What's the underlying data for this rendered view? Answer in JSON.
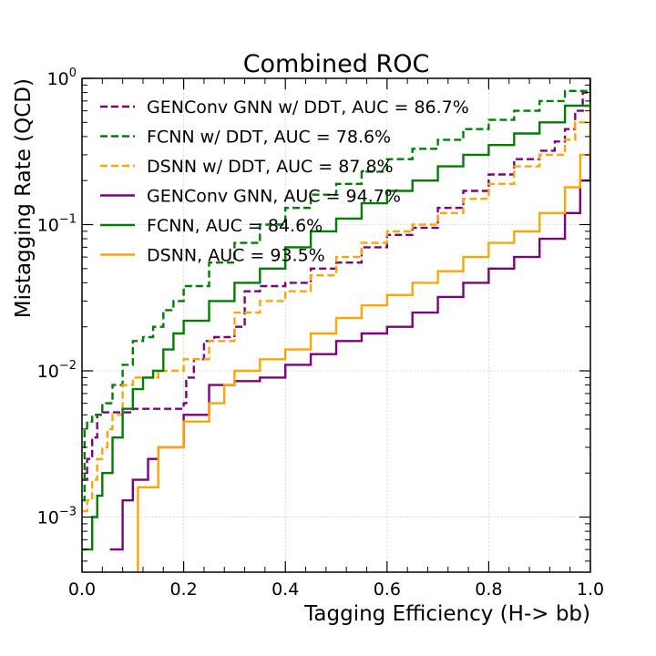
{
  "chart_data": {
    "type": "line",
    "title": "Combined ROC",
    "xlabel": "Tagging Efficiency (H-> bb)",
    "ylabel": "Mistagging Rate (QCD)",
    "xlim": [
      0.0,
      1.0
    ],
    "ylim": [
      0.00042,
      1.0
    ],
    "yscale": "log",
    "grid": true,
    "legend_position": "top-left",
    "x_ticks": [
      "0.0",
      "0.2",
      "0.4",
      "0.6",
      "0.8",
      "1.0"
    ],
    "y_ticks": [
      {
        "base": "10",
        "exp": "−3"
      },
      {
        "base": "10",
        "exp": "−2"
      },
      {
        "base": "10",
        "exp": "−1"
      },
      {
        "base": "10",
        "exp": "0"
      }
    ],
    "series": [
      {
        "name": "GENConv GNN w/ DDT, AUC = 86.7%",
        "color": "#800080",
        "dash": "dashed",
        "x": [
          0.0,
          0.01,
          0.02,
          0.03,
          0.04,
          0.1,
          0.2,
          0.205,
          0.22,
          0.24,
          0.26,
          0.3,
          0.32,
          0.35,
          0.4,
          0.45,
          0.5,
          0.55,
          0.6,
          0.65,
          0.7,
          0.75,
          0.8,
          0.85,
          0.9,
          0.93,
          0.95,
          0.97,
          0.985,
          1.0
        ],
        "y": [
          0.0018,
          0.0025,
          0.0035,
          0.005,
          0.0052,
          0.0055,
          0.006,
          0.009,
          0.012,
          0.016,
          0.017,
          0.02,
          0.035,
          0.038,
          0.04,
          0.05,
          0.055,
          0.07,
          0.085,
          0.095,
          0.13,
          0.17,
          0.22,
          0.28,
          0.32,
          0.37,
          0.45,
          0.6,
          0.8,
          1.0
        ]
      },
      {
        "name": "FCNN w/ DDT, AUC = 78.6%",
        "color": "#008000",
        "dash": "dashed",
        "x": [
          0.0,
          0.005,
          0.01,
          0.02,
          0.04,
          0.06,
          0.08,
          0.1,
          0.12,
          0.14,
          0.16,
          0.18,
          0.2,
          0.25,
          0.3,
          0.35,
          0.4,
          0.45,
          0.5,
          0.55,
          0.6,
          0.65,
          0.7,
          0.75,
          0.8,
          0.85,
          0.9,
          0.95,
          1.0
        ],
        "y": [
          0.0013,
          0.004,
          0.0045,
          0.005,
          0.006,
          0.008,
          0.011,
          0.016,
          0.017,
          0.02,
          0.026,
          0.03,
          0.038,
          0.055,
          0.075,
          0.1,
          0.13,
          0.16,
          0.19,
          0.23,
          0.28,
          0.33,
          0.38,
          0.45,
          0.52,
          0.6,
          0.7,
          0.82,
          1.0
        ]
      },
      {
        "name": "DSNN w/ DDT, AUC = 87.8%",
        "color": "#FFA500",
        "dash": "dashed",
        "x": [
          0.0,
          0.01,
          0.02,
          0.03,
          0.04,
          0.05,
          0.06,
          0.08,
          0.1,
          0.15,
          0.2,
          0.25,
          0.3,
          0.35,
          0.4,
          0.45,
          0.5,
          0.55,
          0.6,
          0.65,
          0.7,
          0.75,
          0.8,
          0.85,
          0.9,
          0.95,
          0.97,
          1.0
        ],
        "y": [
          0.0011,
          0.0013,
          0.0018,
          0.0025,
          0.003,
          0.004,
          0.005,
          0.008,
          0.009,
          0.01,
          0.012,
          0.016,
          0.025,
          0.03,
          0.035,
          0.045,
          0.06,
          0.075,
          0.09,
          0.1,
          0.12,
          0.15,
          0.19,
          0.25,
          0.3,
          0.38,
          0.5,
          0.8
        ]
      },
      {
        "name": "GENConv GNN, AUC = 94.7%",
        "color": "#800080",
        "dash": "solid",
        "x": [
          0.055,
          0.08,
          0.1,
          0.13,
          0.15,
          0.2,
          0.25,
          0.3,
          0.35,
          0.4,
          0.45,
          0.5,
          0.55,
          0.6,
          0.65,
          0.7,
          0.75,
          0.8,
          0.85,
          0.9,
          0.95,
          0.98,
          1.0
        ],
        "y": [
          0.0006,
          0.0013,
          0.0018,
          0.0025,
          0.003,
          0.005,
          0.008,
          0.0085,
          0.009,
          0.011,
          0.013,
          0.016,
          0.018,
          0.02,
          0.025,
          0.032,
          0.04,
          0.05,
          0.06,
          0.08,
          0.12,
          0.2,
          0.5
        ]
      },
      {
        "name": "FCNN, AUC = 84.6%",
        "color": "#008000",
        "dash": "solid",
        "x": [
          0.0,
          0.01,
          0.02,
          0.03,
          0.04,
          0.06,
          0.08,
          0.1,
          0.12,
          0.14,
          0.16,
          0.18,
          0.2,
          0.25,
          0.3,
          0.35,
          0.4,
          0.45,
          0.5,
          0.55,
          0.6,
          0.65,
          0.7,
          0.75,
          0.8,
          0.85,
          0.9,
          0.95,
          1.0
        ],
        "y": [
          0.0006,
          0.0006,
          0.001,
          0.0014,
          0.002,
          0.0035,
          0.0055,
          0.0075,
          0.009,
          0.01,
          0.014,
          0.018,
          0.022,
          0.03,
          0.04,
          0.05,
          0.07,
          0.09,
          0.11,
          0.14,
          0.17,
          0.2,
          0.25,
          0.3,
          0.35,
          0.42,
          0.5,
          0.65,
          1.0
        ]
      },
      {
        "name": "DSNN, AUC = 93.5%",
        "color": "#FFA500",
        "dash": "solid",
        "x": [
          0.09,
          0.11,
          0.15,
          0.2,
          0.25,
          0.28,
          0.3,
          0.35,
          0.4,
          0.45,
          0.5,
          0.55,
          0.6,
          0.65,
          0.7,
          0.75,
          0.8,
          0.85,
          0.9,
          0.95,
          0.98,
          1.0
        ],
        "y": [
          0.0004,
          0.0016,
          0.003,
          0.0045,
          0.006,
          0.008,
          0.01,
          0.012,
          0.014,
          0.018,
          0.023,
          0.028,
          0.033,
          0.04,
          0.048,
          0.06,
          0.075,
          0.09,
          0.12,
          0.18,
          0.3,
          0.7
        ]
      }
    ]
  }
}
